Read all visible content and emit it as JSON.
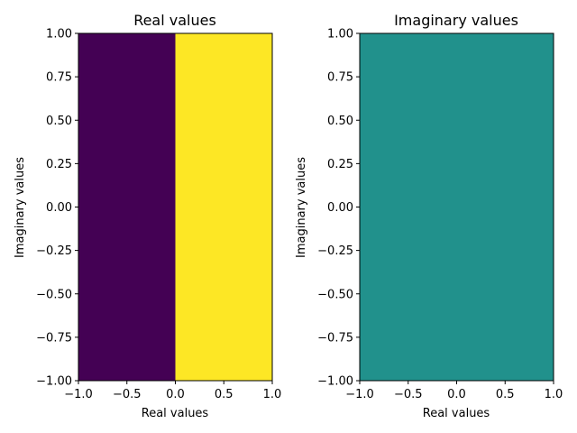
{
  "chart_data": [
    {
      "type": "heatmap",
      "title": "Real values",
      "xlabel": "Real values",
      "ylabel": "Imaginary values",
      "xlim": [
        -1.0,
        1.0
      ],
      "ylim": [
        -1.0,
        1.0
      ],
      "xticks": [
        -1.0,
        -0.5,
        0.0,
        0.5,
        1.0
      ],
      "xtick_labels": [
        "−1.0",
        "−0.5",
        "0.0",
        "0.5",
        "1.0"
      ],
      "yticks": [
        -1.0,
        -0.75,
        -0.5,
        -0.25,
        0.0,
        0.25,
        0.5,
        0.75,
        1.0
      ],
      "ytick_labels": [
        "−1.00",
        "−0.75",
        "−0.50",
        "−0.25",
        "0.00",
        "0.25",
        "0.50",
        "0.75",
        "1.00"
      ],
      "grid": false,
      "cells": [
        {
          "x0": -1.0,
          "x1": 0.0,
          "y0": -1.0,
          "y1": 1.0,
          "color": "#440154"
        },
        {
          "x0": 0.0,
          "x1": 1.0,
          "y0": -1.0,
          "y1": 1.0,
          "color": "#fde725"
        }
      ]
    },
    {
      "type": "heatmap",
      "title": "Imaginary values",
      "xlabel": "Real values",
      "ylabel": "Imaginary values",
      "xlim": [
        -1.0,
        1.0
      ],
      "ylim": [
        -1.0,
        1.0
      ],
      "xticks": [
        -1.0,
        -0.5,
        0.0,
        0.5,
        1.0
      ],
      "xtick_labels": [
        "−1.0",
        "−0.5",
        "0.0",
        "0.5",
        "1.0"
      ],
      "yticks": [
        -1.0,
        -0.75,
        -0.5,
        -0.25,
        0.0,
        0.25,
        0.5,
        0.75,
        1.0
      ],
      "ytick_labels": [
        "−1.00",
        "−0.75",
        "−0.50",
        "−0.25",
        "0.00",
        "0.25",
        "0.50",
        "0.75",
        "1.00"
      ],
      "grid": false,
      "cells": [
        {
          "x0": -1.0,
          "x1": 1.0,
          "y0": -1.0,
          "y1": 1.0,
          "color": "#21918c"
        }
      ]
    }
  ]
}
